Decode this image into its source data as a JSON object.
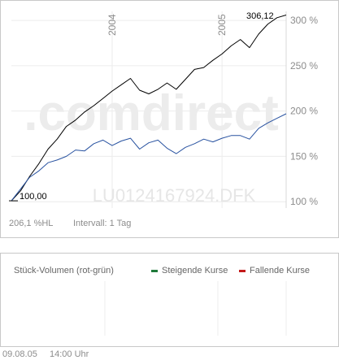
{
  "chart_data": {
    "type": "line",
    "title": "",
    "watermark": ".comdirect",
    "fund_code": "LU0124167924.DFK",
    "x_ticks": [
      "2004",
      "2005"
    ],
    "y_axis": {
      "ticks": [
        100,
        150,
        200,
        250,
        300
      ],
      "tick_labels": [
        "100 %",
        "150 %",
        "200 %",
        "250 %",
        "300 %"
      ],
      "ylim": [
        93,
        310
      ],
      "scale": "linear",
      "position": "right"
    },
    "x_range": [
      "2003-02",
      "2005-08"
    ],
    "grid": true,
    "start_label": "100,00",
    "end_label": "306,12",
    "series": [
      {
        "color": "#000000",
        "x": [
          "2003-02",
          "2003-03",
          "2003-04",
          "2003-05",
          "2003-06",
          "2003-07",
          "2003-08",
          "2003-09",
          "2003-10",
          "2003-11",
          "2003-12",
          "2004-01",
          "2004-02",
          "2004-03",
          "2004-04",
          "2004-05",
          "2004-06",
          "2004-07",
          "2004-08",
          "2004-09",
          "2004-10",
          "2004-11",
          "2004-12",
          "2005-01",
          "2005-02",
          "2005-03",
          "2005-04",
          "2005-05",
          "2005-06",
          "2005-07",
          "2005-08"
        ],
        "values": [
          101,
          112,
          128,
          142,
          158,
          169,
          183,
          190,
          199,
          206,
          214,
          222,
          229,
          236,
          223,
          219,
          224,
          231,
          224,
          235,
          246,
          248,
          256,
          263,
          272,
          279,
          270,
          285,
          296,
          303,
          306
        ]
      },
      {
        "color": "#2852a0",
        "x": [
          "2003-02",
          "2003-03",
          "2003-04",
          "2003-05",
          "2003-06",
          "2003-07",
          "2003-08",
          "2003-09",
          "2003-10",
          "2003-11",
          "2003-12",
          "2004-01",
          "2004-02",
          "2004-03",
          "2004-04",
          "2004-05",
          "2004-06",
          "2004-07",
          "2004-08",
          "2004-09",
          "2004-10",
          "2004-11",
          "2004-12",
          "2005-01",
          "2005-02",
          "2005-03",
          "2005-04",
          "2005-05",
          "2005-06",
          "2005-07",
          "2005-08"
        ],
        "values": [
          101,
          114,
          127,
          134,
          143,
          146,
          150,
          157,
          156,
          164,
          168,
          162,
          167,
          170,
          158,
          165,
          168,
          159,
          153,
          160,
          164,
          169,
          166,
          170,
          173,
          173,
          169,
          181,
          187,
          192,
          197
        ]
      }
    ]
  },
  "footer": {
    "performance": "206,1 %HL",
    "interval": "Intervall: 1 Tag"
  },
  "volume": {
    "title": "Stück-Volumen (rot-grün)",
    "rising_label": "Steigende Kurse",
    "falling_label": "Fallende Kurse",
    "rising_color": "#1f7a3a",
    "falling_color": "#c41a1a"
  },
  "timestamp": {
    "date": "09.08.05",
    "time": "14:00 Uhr"
  }
}
